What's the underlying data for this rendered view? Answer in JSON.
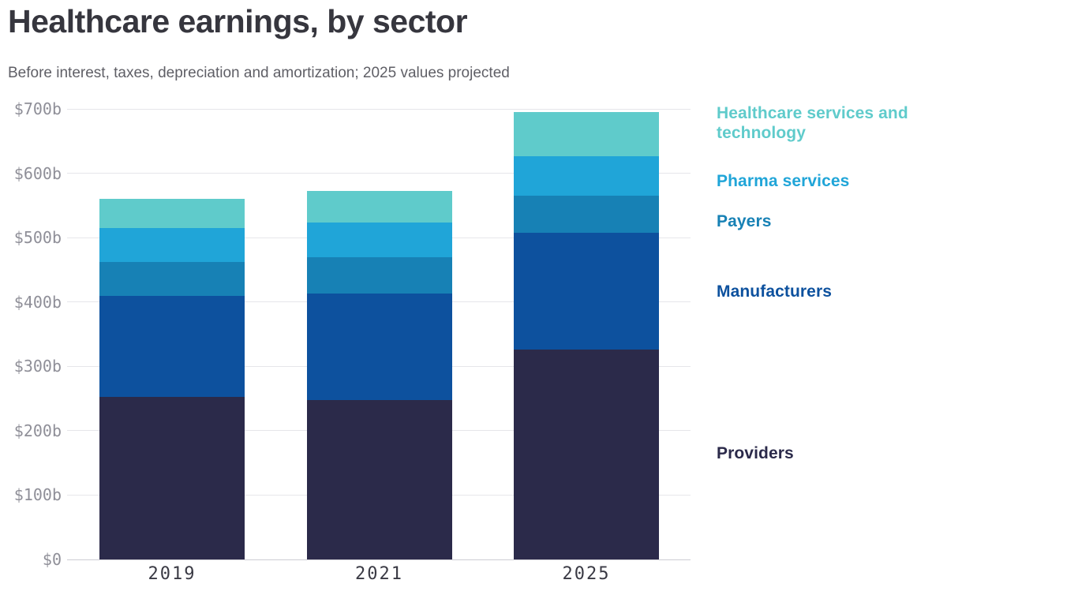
{
  "title": "Healthcare earnings, by sector",
  "subtitle": "Before interest, taxes, depreciation and amortization; 2025 values projected",
  "chart_data": {
    "type": "bar",
    "stacked": true,
    "title": "Healthcare earnings, by sector",
    "subtitle": "Before interest, taxes, depreciation and amortization; 2025 values projected",
    "unit": "billions USD (EBITDA)",
    "categories": [
      "2019",
      "2021",
      "2025"
    ],
    "series": [
      {
        "name": "Providers",
        "color": "#2b2a4a",
        "values": [
          253,
          248,
          326
        ]
      },
      {
        "name": "Manufacturers",
        "color": "#0d519e",
        "values": [
          156,
          165,
          182
        ]
      },
      {
        "name": "Payers",
        "color": "#1781b5",
        "values": [
          53,
          56,
          57
        ]
      },
      {
        "name": "Pharma services",
        "color": "#20a5d8",
        "values": [
          53,
          55,
          61
        ]
      },
      {
        "name": "Healthcare services and technology",
        "color": "#5fcbcb",
        "values": [
          45,
          49,
          69
        ]
      }
    ],
    "totals": [
      560,
      573,
      695
    ],
    "xlabel": "",
    "ylabel": "",
    "ylim": [
      0,
      700
    ],
    "ytick_step": 100,
    "ytick_labels": [
      "$0",
      "$100b",
      "$200b",
      "$300b",
      "$400b",
      "$500b",
      "$600b",
      "$700b"
    ],
    "grid": true,
    "legend_position": "right"
  },
  "legend": {
    "items": [
      {
        "label": "Healthcare services and technology",
        "color": "#5fcbcb"
      },
      {
        "label": "Pharma services",
        "color": "#20a5d8"
      },
      {
        "label": "Payers",
        "color": "#1781b5"
      },
      {
        "label": "Manufacturers",
        "color": "#0d519e"
      },
      {
        "label": "Providers",
        "color": "#2b2a4a"
      }
    ]
  }
}
